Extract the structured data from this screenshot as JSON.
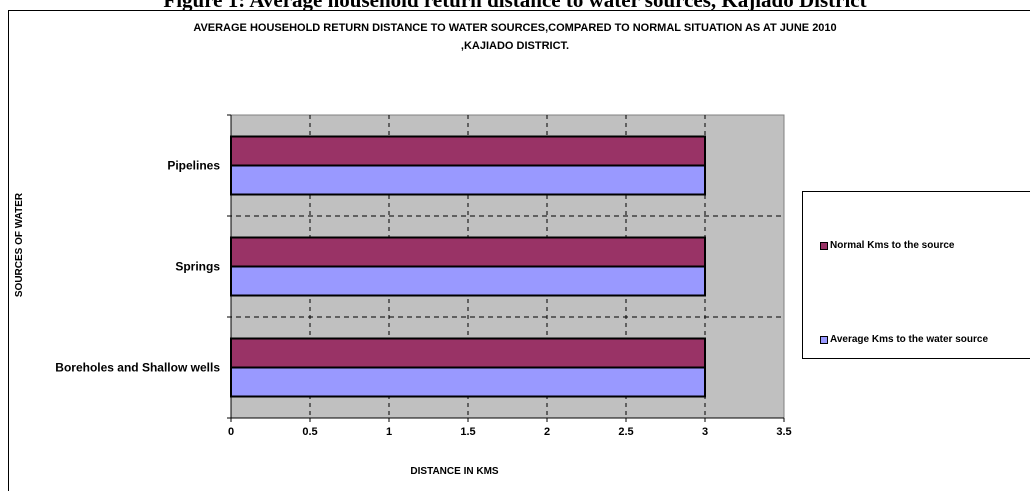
{
  "page": {
    "heading_fragment": "Figure 1: Average household return distance to water sources, Kajiado District"
  },
  "chart_data": {
    "type": "bar",
    "orientation": "horizontal",
    "title_line1": "AVERAGE HOUSEHOLD RETURN DISTANCE TO WATER SOURCES,COMPARED TO NORMAL SITUATION AS AT JUNE 2010",
    "title_line2": ",KAJIADO DISTRICT.",
    "xlabel": "DISTANCE IN KMS",
    "ylabel": "SOURCES OF WATER",
    "categories": [
      "Pipelines",
      "Springs",
      "Boreholes and Shallow wells"
    ],
    "series": [
      {
        "name": "Normal Kms to the source",
        "values": [
          3,
          3,
          3
        ],
        "color": "#993366"
      },
      {
        "name": "Average Kms to the water source",
        "values": [
          3,
          3,
          3
        ],
        "color": "#9999ff"
      }
    ],
    "xlim": [
      0,
      3.5
    ],
    "xticks": [
      "0",
      "0.5",
      "1",
      "1.5",
      "2",
      "2.5",
      "3",
      "3.5"
    ],
    "grid": true,
    "plot_background": "#c0c0c0",
    "legend_position": "right"
  }
}
